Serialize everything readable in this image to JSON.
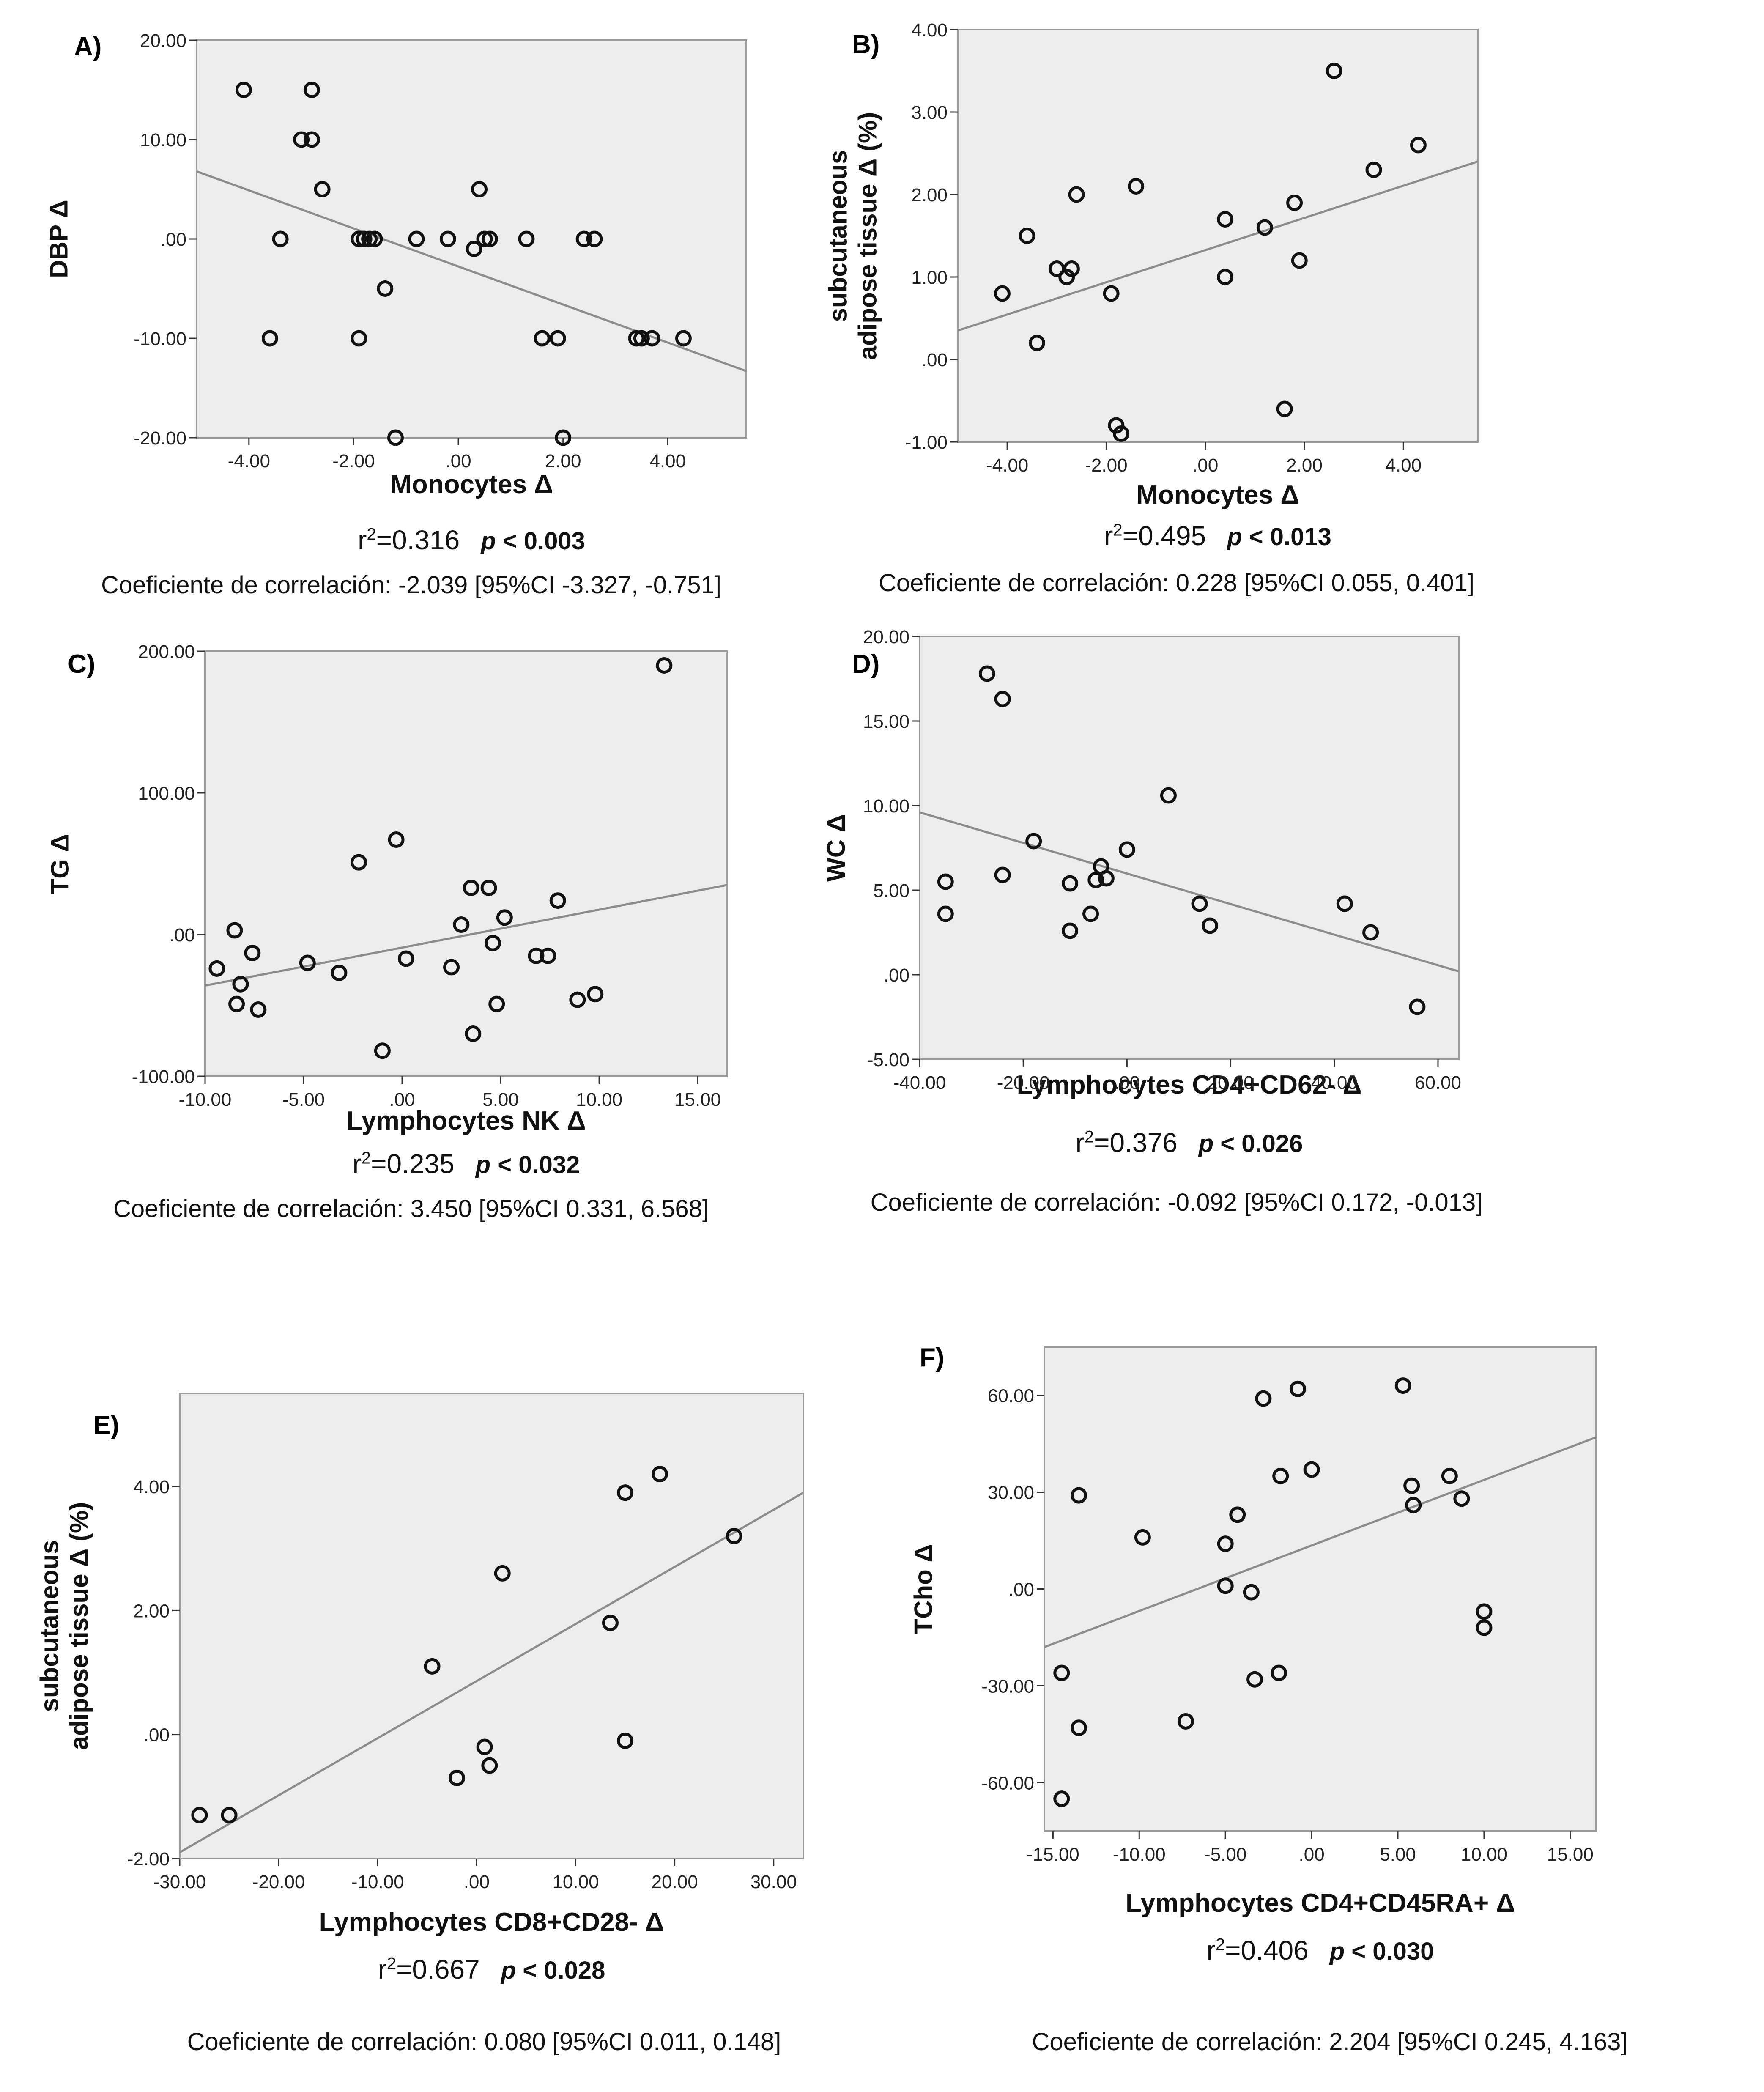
{
  "colors": {
    "plot_bg": "#ededed",
    "frame": "#9a9a9a",
    "fit_line": "#8c8c8c",
    "marker_stroke": "#111111"
  },
  "panels": [
    {
      "letter": "A)",
      "ylabel_lines": [
        "DBP Δ"
      ],
      "xlabel": "Monocytes Δ",
      "stats": {
        "r2_prefix": "r",
        "r2_sup": "2",
        "r2_value": "=0.316",
        "p_text": "p < 0.003"
      },
      "coef_text": "Coeficiente de correlación: -2.039 [95%CI -3.327, -0.751]",
      "chart_data": {
        "type": "scatter",
        "xlim": [
          -5.0,
          5.5
        ],
        "ylim": [
          -20,
          20
        ],
        "xticks": [
          -4,
          -2,
          0,
          2,
          4
        ],
        "xtick_labels": [
          "-4.00",
          "-2.00",
          ".00",
          "2.00",
          "4.00"
        ],
        "yticks": [
          -20,
          -10,
          0,
          10,
          20
        ],
        "ytick_labels": [
          "-20.00",
          "-10.00",
          ".00",
          "10.00",
          "20.00"
        ],
        "x": [
          -4.1,
          -2.8,
          -3.0,
          -2.8,
          -2.6,
          -3.6,
          -3.4,
          -1.9,
          -1.8,
          -1.7,
          -1.6,
          -1.4,
          -1.9,
          -1.2,
          -0.8,
          -0.2,
          0.3,
          0.4,
          0.5,
          0.6,
          1.3,
          1.6,
          1.9,
          2.0,
          2.4,
          2.6,
          3.4,
          3.5,
          3.7,
          4.3
        ],
        "y": [
          15,
          15,
          10,
          10,
          5,
          -10,
          0,
          0,
          0,
          0,
          0,
          -5,
          -10,
          -20,
          0,
          0,
          -1,
          5,
          0,
          0,
          0,
          -10,
          -10,
          -20,
          0,
          0,
          -10,
          -10,
          -10,
          -10
        ],
        "fit": {
          "x": [
            -5.0,
            5.5
          ],
          "y": [
            6.8,
            -13.3
          ]
        },
        "grid": false
      }
    },
    {
      "letter": "B)",
      "ylabel_lines": [
        "subcutaneous",
        "adipose tissue Δ (%)"
      ],
      "xlabel": "Monocytes Δ",
      "stats": {
        "r2_prefix": "r",
        "r2_sup": "2",
        "r2_value": "=0.495",
        "p_text": "p < 0.013"
      },
      "coef_text": "Coeficiente de correlación: 0.228 [95%CI 0.055, 0.401]",
      "chart_data": {
        "type": "scatter",
        "xlim": [
          -5.0,
          5.5
        ],
        "ylim": [
          -1,
          4
        ],
        "xticks": [
          -4,
          -2,
          0,
          2,
          4
        ],
        "xtick_labels": [
          "-4.00",
          "-2.00",
          ".00",
          "2.00",
          "4.00"
        ],
        "yticks": [
          -1,
          0,
          1,
          2,
          3,
          4
        ],
        "ytick_labels": [
          "-1.00",
          ".00",
          "1.00",
          "2.00",
          "3.00",
          "4.00"
        ],
        "x": [
          -4.1,
          -3.6,
          -3.4,
          -3.0,
          -2.8,
          -2.7,
          -2.6,
          -1.4,
          -1.9,
          -1.8,
          -1.7,
          0.4,
          0.4,
          1.2,
          1.6,
          1.8,
          1.9,
          2.6,
          3.4,
          4.3
        ],
        "y": [
          0.8,
          1.5,
          0.2,
          1.1,
          1.0,
          1.1,
          2.0,
          2.1,
          0.8,
          -0.8,
          -0.9,
          1.7,
          1.0,
          1.6,
          -0.6,
          1.9,
          1.2,
          3.5,
          2.3,
          2.6
        ],
        "fit": {
          "x": [
            -5.0,
            5.5
          ],
          "y": [
            0.35,
            2.4
          ]
        },
        "grid": false
      }
    },
    {
      "letter": "C)",
      "ylabel_lines": [
        "TG Δ"
      ],
      "xlabel": "Lymphocytes NK Δ",
      "stats": {
        "r2_prefix": "r",
        "r2_sup": "2",
        "r2_value": "=0.235",
        "p_text": "p < 0.032"
      },
      "coef_text": "Coeficiente de correlación: 3.450 [95%CI 0.331, 6.568]",
      "chart_data": {
        "type": "scatter",
        "xlim": [
          -10,
          16.5
        ],
        "ylim": [
          -100,
          200
        ],
        "xticks": [
          -10,
          -5,
          0,
          5,
          10,
          15
        ],
        "xtick_labels": [
          "-10.00",
          "-5.00",
          ".00",
          "5.00",
          "10.00",
          "15.00"
        ],
        "yticks": [
          -100,
          0,
          100,
          200
        ],
        "ytick_labels": [
          "-100.00",
          ".00",
          "100.00",
          "200.00"
        ],
        "x": [
          -9.4,
          -8.5,
          -8.2,
          -8.4,
          -7.6,
          -7.3,
          -4.8,
          -3.2,
          -2.2,
          -1.0,
          -0.3,
          0.2,
          2.5,
          3.0,
          3.5,
          3.6,
          4.4,
          4.6,
          4.8,
          5.2,
          6.8,
          7.4,
          7.9,
          8.9,
          9.8,
          13.3
        ],
        "y": [
          -24,
          3,
          -35,
          -49,
          -13,
          -53,
          -20,
          -27,
          51,
          -82,
          67,
          -17,
          -23,
          7,
          33,
          -70,
          33,
          -6,
          -49,
          12,
          -15,
          -15,
          24,
          -46,
          -42,
          190
        ],
        "fit": {
          "x": [
            -10,
            16.5
          ],
          "y": [
            -36,
            35
          ]
        },
        "grid": false
      }
    },
    {
      "letter": "D)",
      "ylabel_lines": [
        "WC Δ"
      ],
      "xlabel": "Lymphocytes CD4+CD62- Δ",
      "stats": {
        "r2_prefix": "r",
        "r2_sup": "2",
        "r2_value": "=0.376",
        "p_text": "p < 0.026"
      },
      "coef_text": "Coeficiente de correlación: -0.092 [95%CI 0.172, -0.013]",
      "chart_data": {
        "type": "scatter",
        "xlim": [
          -40,
          64
        ],
        "ylim": [
          -5,
          20
        ],
        "xticks": [
          -40,
          -20,
          0,
          20,
          40,
          60
        ],
        "xtick_labels": [
          "-40.00",
          "-20.00",
          ".00",
          "20.00",
          "40.00",
          "60.00"
        ],
        "yticks": [
          -5,
          0,
          5,
          10,
          15,
          20
        ],
        "ytick_labels": [
          "-5.00",
          ".00",
          "5.00",
          "10.00",
          "15.00",
          "20.00"
        ],
        "x": [
          -35,
          -35,
          -27,
          -24,
          -24,
          -18,
          -11,
          -11,
          -7,
          -6,
          -5,
          -4,
          0,
          8,
          14,
          16,
          42,
          47,
          56
        ],
        "y": [
          5.5,
          3.6,
          17.8,
          16.3,
          5.9,
          7.9,
          5.4,
          2.6,
          3.6,
          5.6,
          6.4,
          5.7,
          7.4,
          10.6,
          4.2,
          2.9,
          4.2,
          2.5,
          -1.9
        ],
        "fit": {
          "x": [
            -40,
            64
          ],
          "y": [
            9.6,
            0.2
          ]
        },
        "grid": false
      }
    },
    {
      "letter": "E)",
      "ylabel_lines": [
        "subcutaneous",
        "adipose tissue Δ (%)"
      ],
      "xlabel": "Lymphocytes CD8+CD28- Δ",
      "stats": {
        "r2_prefix": "r",
        "r2_sup": "2",
        "r2_value": "=0.667",
        "p_text": "p < 0.028"
      },
      "coef_text": "Coeficiente de correlación: 0.080 [95%CI 0.011, 0.148]",
      "chart_data": {
        "type": "scatter",
        "xlim": [
          -30,
          33
        ],
        "ylim": [
          -2,
          5.5
        ],
        "xticks": [
          -30,
          -20,
          -10,
          0,
          10,
          20,
          30
        ],
        "xtick_labels": [
          "-30.00",
          "-20.00",
          "-10.00",
          ".00",
          "10.00",
          "20.00",
          "30.00"
        ],
        "yticks": [
          -2,
          0,
          2,
          4
        ],
        "ytick_labels": [
          "-2.00",
          ".00",
          "2.00",
          "4.00"
        ],
        "x": [
          -28,
          -25,
          -4.5,
          -2.0,
          0.8,
          1.3,
          2.6,
          13.5,
          15.0,
          15.0,
          18.5,
          26.0
        ],
        "y": [
          -1.3,
          -1.3,
          1.1,
          -0.7,
          -0.2,
          -0.5,
          2.6,
          1.8,
          3.9,
          -0.1,
          4.2,
          3.2
        ],
        "fit": {
          "x": [
            -30,
            33
          ],
          "y": [
            -1.9,
            3.9
          ]
        },
        "grid": false
      }
    },
    {
      "letter": "F)",
      "ylabel_lines": [
        "TCho Δ"
      ],
      "xlabel": "Lymphocytes CD4+CD45RA+ Δ",
      "stats": {
        "r2_prefix": "r",
        "r2_sup": "2",
        "r2_value": "=0.406",
        "p_text": "p < 0.030"
      },
      "coef_text": "Coeficiente de correlación: 2.204 [95%CI 0.245, 4.163]",
      "chart_data": {
        "type": "scatter",
        "xlim": [
          -15.5,
          16.5
        ],
        "ylim": [
          -75,
          75
        ],
        "xticks": [
          -15,
          -10,
          -5,
          0,
          5,
          10,
          15
        ],
        "xtick_labels": [
          "-15.00",
          "-10.00",
          "-5.00",
          ".00",
          "5.00",
          "10.00",
          "15.00"
        ],
        "yticks": [
          -60,
          -30,
          0,
          30,
          60
        ],
        "ytick_labels": [
          "-60.00",
          "-30.00",
          ".00",
          "30.00",
          "60.00"
        ],
        "x": [
          -14.5,
          -14.5,
          -13.5,
          -13.5,
          -9.8,
          -7.3,
          -5.0,
          -5.0,
          -4.3,
          -3.5,
          -3.3,
          -2.8,
          -1.9,
          -1.8,
          -0.8,
          0.0,
          5.3,
          5.8,
          5.9,
          8.0,
          8.7,
          10.0,
          10.0
        ],
        "y": [
          -26,
          -65,
          29,
          -43,
          16,
          -41,
          1,
          14,
          23,
          -1,
          -28,
          59,
          -26,
          35,
          62,
          37,
          63,
          32,
          26,
          35,
          28,
          -7,
          -12
        ],
        "fit": {
          "x": [
            -15.5,
            16.5
          ],
          "y": [
            -18,
            47
          ]
        },
        "grid": false
      }
    }
  ]
}
